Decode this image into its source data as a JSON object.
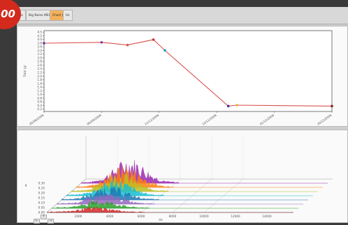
{
  "badge": {
    "label": "00"
  },
  "tabs": [
    {
      "label": "a"
    },
    {
      "label": "Big Noise MEG1"
    },
    {
      "label": "Chart (g)",
      "active": true
    },
    {
      "label": "Hz"
    }
  ],
  "colors": {
    "line": "#d9534f",
    "active_tab": "#f3b15c"
  },
  "chart_data": [
    {
      "type": "line",
      "ylabel": "Total (g)",
      "ylim": [
        0,
        4.5
      ],
      "yticks": [
        "0.2",
        "0.4",
        "0.6",
        "0.8",
        "1.0",
        "1.2",
        "1.4",
        "1.6",
        "1.8",
        "2.0",
        "2.2",
        "2.4",
        "2.6",
        "2.8",
        "3.0",
        "3.2",
        "3.4",
        "3.6",
        "3.8",
        "4.0",
        "4.2",
        "4.5"
      ],
      "xticks": [
        "05/08/2006",
        "08/09/2006",
        "11/11/2006",
        "12/11/2006",
        "01/12/2006",
        "20/12/2006"
      ],
      "series": [
        {
          "points": [
            {
              "x": 0,
              "y": 3.8
            },
            {
              "x": 0.2,
              "y": 3.85
            },
            {
              "x": 0.29,
              "y": 3.7
            },
            {
              "x": 0.38,
              "y": 4.0
            },
            {
              "x": 0.42,
              "y": 3.4
            },
            {
              "x": 0.64,
              "y": 0.3
            },
            {
              "x": 0.67,
              "y": 0.35
            },
            {
              "x": 1.0,
              "y": 0.3
            }
          ]
        }
      ]
    },
    {
      "type": "area",
      "xlabel": "Hz",
      "ylabel": "g",
      "xticks": [
        "2000",
        "4000",
        "6000",
        "8000",
        "10000",
        "12000",
        "14000"
      ],
      "zticks": [
        "0.00",
        "0.05",
        "0.10",
        "0.15",
        "0.20",
        "0.25",
        "0.30"
      ],
      "series": [
        {
          "color": "#d62728"
        },
        {
          "color": "#2ca02c"
        },
        {
          "color": "#9467bd"
        },
        {
          "color": "#1f77b4"
        },
        {
          "color": "#17becf"
        },
        {
          "color": "#bcbd22"
        },
        {
          "color": "#ff7f0e"
        },
        {
          "color": "#9b27b0"
        }
      ]
    }
  ],
  "nav": {
    "up": "↑",
    "left": "←",
    "right": "→"
  }
}
